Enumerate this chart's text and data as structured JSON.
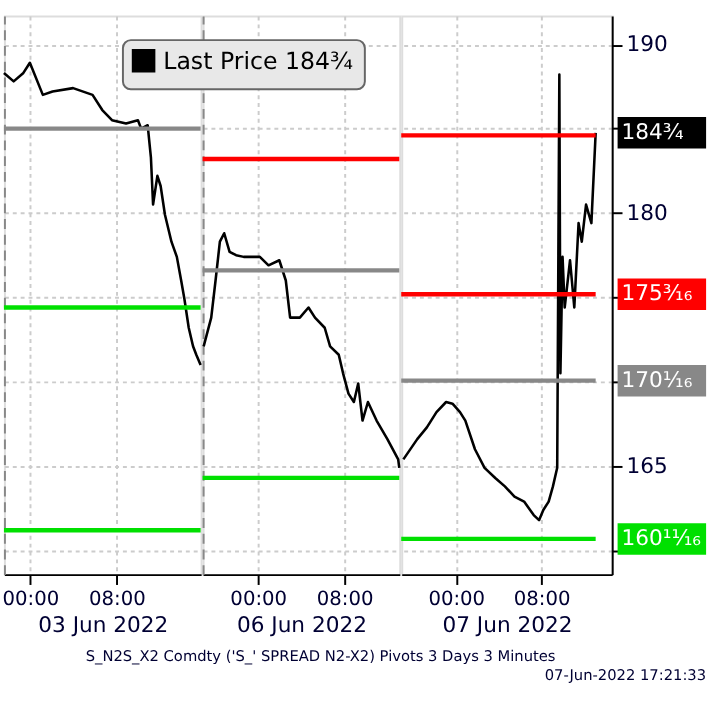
{
  "chart_data": [
    {
      "type": "line",
      "xlabel": "03 Jun 2022",
      "xlim": [
        "2022-06-02T21:36",
        "2022-06-03T15:48"
      ],
      "xticks": [
        {
          "value": "2022-06-03T00:00",
          "label": "00:00"
        },
        {
          "value": "2022-06-03T08:00",
          "label": "08:00"
        }
      ],
      "ylim": [
        158.6,
        191.7
      ],
      "yticks": [
        160,
        165,
        170,
        175,
        180,
        185,
        190
      ],
      "tick_labels": "x",
      "grid": true,
      "legend": "top",
      "series": [
        {
          "name": "Last Price 184³⁄₄",
          "color": "#000000",
          "x": [
            "2022-06-02T21:36",
            "2022-06-02T22:30",
            "2022-06-02T23:24",
            "2022-06-03T00:00",
            "2022-06-03T01:12",
            "2022-06-03T02:06",
            "2022-06-03T04:00",
            "2022-06-03T05:48",
            "2022-06-03T06:42",
            "2022-06-03T07:36",
            "2022-06-03T08:54",
            "2022-06-03T10:00",
            "2022-06-03T10:18",
            "2022-06-03T10:54",
            "2022-06-03T11:12",
            "2022-06-03T11:24",
            "2022-06-03T11:48",
            "2022-06-03T12:06",
            "2022-06-03T12:30",
            "2022-06-03T13:06",
            "2022-06-03T13:36",
            "2022-06-03T14:00",
            "2022-06-03T14:18",
            "2022-06-03T14:42",
            "2022-06-03T15:06",
            "2022-06-03T15:24",
            "2022-06-03T15:48"
          ],
          "values": [
            188.3,
            187.8,
            188.3,
            188.9,
            187.0,
            187.2,
            187.4,
            187.0,
            186.1,
            185.5,
            185.3,
            185.5,
            185.0,
            185.2,
            183.3,
            180.5,
            182.2,
            181.6,
            179.9,
            178.3,
            177.4,
            176.0,
            174.9,
            173.2,
            172.1,
            171.6,
            171.0
          ]
        },
        {
          "color": "#888888",
          "x": [
            "2022-06-02T21:36",
            "2022-06-03T15:48"
          ],
          "values": [
            185.0,
            185.0
          ]
        },
        {
          "color": "#00e000",
          "x": [
            "2022-06-02T21:36",
            "2022-06-03T15:48"
          ],
          "values": [
            174.4,
            174.4
          ]
        },
        {
          "color": "#00e000",
          "x": [
            "2022-06-02T21:36",
            "2022-06-03T15:48"
          ],
          "values": [
            161.2,
            161.2
          ]
        }
      ]
    },
    {
      "type": "line",
      "xlabel": "06 Jun 2022",
      "xlim": [
        "2022-06-05T18:54",
        "2022-06-06T13:06"
      ],
      "xticks": [
        {
          "value": "2022-06-06T00:00",
          "label": "00:00"
        },
        {
          "value": "2022-06-06T08:00",
          "label": "08:00"
        }
      ],
      "ylim": [
        158.6,
        191.7
      ],
      "yticks": [
        160,
        165,
        170,
        175,
        180,
        185,
        190
      ],
      "tick_labels": "x",
      "grid": true,
      "annotations": [
        "S_N2S_X2 Comdty ('S_' SPREAD     N2-X2) Pivots 3 Days 3 Minutes"
      ],
      "series": [
        {
          "color": "#000000",
          "x": [
            "2022-06-05T19:00",
            "2022-06-05T19:42",
            "2022-06-05T20:06",
            "2022-06-05T20:30",
            "2022-06-05T20:54",
            "2022-06-05T21:24",
            "2022-06-05T22:00",
            "2022-06-05T22:42",
            "2022-06-06T00:12",
            "2022-06-06T01:00",
            "2022-06-06T02:00",
            "2022-06-06T02:36",
            "2022-06-06T03:00",
            "2022-06-06T03:54",
            "2022-06-06T04:42",
            "2022-06-06T05:18",
            "2022-06-06T06:12",
            "2022-06-06T06:42",
            "2022-06-06T07:30",
            "2022-06-06T07:54",
            "2022-06-06T08:24",
            "2022-06-06T08:54",
            "2022-06-06T09:18",
            "2022-06-06T09:42",
            "2022-06-06T10:12",
            "2022-06-06T11:00",
            "2022-06-06T12:00",
            "2022-06-06T13:00",
            "2022-06-06T13:06"
          ],
          "values": [
            172.1,
            173.8,
            176.0,
            178.3,
            178.8,
            177.7,
            177.5,
            177.4,
            177.4,
            176.9,
            177.2,
            176.0,
            173.8,
            173.8,
            174.4,
            173.8,
            173.2,
            172.1,
            171.6,
            170.5,
            169.3,
            168.8,
            169.9,
            167.7,
            168.8,
            167.7,
            166.6,
            165.4,
            164.9
          ]
        },
        {
          "color": "#ff0000",
          "x": [
            "2022-06-05T18:54",
            "2022-06-06T13:06"
          ],
          "values": [
            183.2,
            183.2
          ]
        },
        {
          "color": "#888888",
          "x": [
            "2022-06-05T18:54",
            "2022-06-06T13:06"
          ],
          "values": [
            176.6,
            176.6
          ]
        },
        {
          "color": "#00e000",
          "x": [
            "2022-06-05T18:54",
            "2022-06-06T13:06"
          ],
          "values": [
            164.3,
            164.3
          ]
        }
      ]
    },
    {
      "type": "line",
      "xlabel": "07 Jun 2022",
      "xlim": [
        "2022-06-06T18:54",
        "2022-06-07T14:36"
      ],
      "xticks": [
        {
          "value": "2022-06-07T00:00",
          "label": "00:00"
        },
        {
          "value": "2022-06-07T08:00",
          "label": "08:00"
        }
      ],
      "ylim": [
        158.6,
        191.7
      ],
      "yticks": [
        {
          "value": 160,
          "label": null
        },
        165,
        {
          "value": 170,
          "label": null
        },
        {
          "value": 175,
          "label": null
        },
        180,
        {
          "value": 185,
          "label": null
        },
        190
      ],
      "grid": true,
      "annotations": [
        "07-Jun-2022 17:21:33",
        {
          "text": "184³⁄₄",
          "x": "2022-06-07T13:06",
          "y": 184.75
        },
        {
          "text": "175³⁄₁₆",
          "x": "2022-06-07T13:06",
          "y": 175.1875
        },
        {
          "text": "170¹⁄₁₆",
          "x": "2022-06-07T13:06",
          "y": 170.0625
        },
        {
          "text": "160¹¹⁄₁₆",
          "x": "2022-06-07T13:06",
          "y": 160.6875
        }
      ],
      "series": [
        {
          "color": "#000000",
          "x": [
            "2022-06-06T19:06",
            "2022-06-06T20:24",
            "2022-06-06T21:18",
            "2022-06-06T22:12",
            "2022-06-06T23:06",
            "2022-06-06T23:42",
            "2022-06-07T00:24",
            "2022-06-07T00:54",
            "2022-06-07T01:48",
            "2022-06-07T02:42",
            "2022-06-07T03:42",
            "2022-06-07T04:36",
            "2022-06-07T05:30",
            "2022-06-07T06:24",
            "2022-06-07T07:18",
            "2022-06-07T07:48",
            "2022-06-07T08:12",
            "2022-06-07T08:42",
            "2022-06-07T09:06",
            "2022-06-07T09:30",
            "2022-06-07T09:42",
            "2022-06-07T09:48",
            "2022-06-07T10:00",
            "2022-06-07T10:12",
            "2022-06-07T10:24",
            "2022-06-07T10:42",
            "2022-06-07T11:06",
            "2022-06-07T11:30",
            "2022-06-07T11:48",
            "2022-06-07T12:12",
            "2022-06-07T12:42",
            "2022-06-07T13:06"
          ],
          "values": [
            165.4,
            166.6,
            167.3,
            168.2,
            168.8,
            168.7,
            168.2,
            167.7,
            166.0,
            164.9,
            164.3,
            163.8,
            163.2,
            162.9,
            162.1,
            161.8,
            162.4,
            162.9,
            163.8,
            164.9,
            188.2,
            170.5,
            177.4,
            174.4,
            175.5,
            177.2,
            174.4,
            179.4,
            178.3,
            180.5,
            179.4,
            184.75
          ]
        },
        {
          "color": "#ff0000",
          "x": [
            "2022-06-06T18:54",
            "2022-06-07T13:06"
          ],
          "values": [
            184.6,
            184.6
          ]
        },
        {
          "color": "#ff0000",
          "x": [
            "2022-06-06T18:54",
            "2022-06-07T13:06"
          ],
          "values": [
            175.1875,
            175.1875
          ]
        },
        {
          "color": "#888888",
          "x": [
            "2022-06-06T18:54",
            "2022-06-07T13:06"
          ],
          "values": [
            170.0625,
            170.0625
          ]
        },
        {
          "color": "#00e000",
          "x": [
            "2022-06-06T18:54",
            "2022-06-07T13:06"
          ],
          "values": [
            160.6875,
            160.6875
          ]
        }
      ]
    }
  ]
}
